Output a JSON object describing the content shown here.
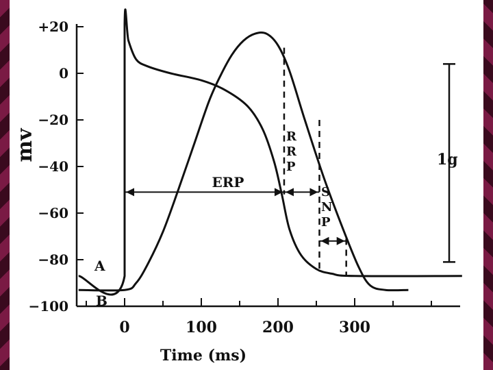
{
  "chart_data": {
    "type": "line",
    "title": "",
    "xlabel": "Time (ms)",
    "ylabel": "mv",
    "xlim": [
      -60,
      440
    ],
    "ylim": [
      -100,
      20
    ],
    "x_ticks": [
      0,
      100,
      200,
      300
    ],
    "y_ticks": [
      20,
      0,
      -20,
      -40,
      -60,
      -80,
      -100
    ],
    "y_tick_labels": [
      "+20",
      "0",
      "−20",
      "−40",
      "−60",
      "−80",
      "−100"
    ],
    "series": [
      {
        "name": "A",
        "points": [
          [
            -60,
            -87
          ],
          [
            0,
            -87
          ],
          [
            0,
            21
          ],
          [
            5,
            14
          ],
          [
            15,
            6
          ],
          [
            30,
            3
          ],
          [
            60,
            0
          ],
          [
            100,
            -3
          ],
          [
            130,
            -7
          ],
          [
            160,
            -14
          ],
          [
            180,
            -24
          ],
          [
            195,
            -38
          ],
          [
            205,
            -52
          ],
          [
            215,
            -67
          ],
          [
            230,
            -78
          ],
          [
            250,
            -84
          ],
          [
            270,
            -86
          ],
          [
            300,
            -87
          ],
          [
            440,
            -87
          ]
        ]
      },
      {
        "name": "B",
        "points": [
          [
            -60,
            -93
          ],
          [
            0,
            -93
          ],
          [
            15,
            -90
          ],
          [
            30,
            -82
          ],
          [
            50,
            -68
          ],
          [
            70,
            -50
          ],
          [
            90,
            -31
          ],
          [
            110,
            -12
          ],
          [
            125,
            -1
          ],
          [
            140,
            8
          ],
          [
            155,
            14
          ],
          [
            170,
            17
          ],
          [
            185,
            17
          ],
          [
            200,
            12
          ],
          [
            215,
            1
          ],
          [
            235,
            -20
          ],
          [
            260,
            -45
          ],
          [
            285,
            -67
          ],
          [
            305,
            -83
          ],
          [
            320,
            -91
          ],
          [
            340,
            -93
          ],
          [
            370,
            -93
          ]
        ]
      }
    ],
    "markers": {
      "rrp_line_x": 208,
      "snp_start_x": 254,
      "snp_end_x": 289,
      "erp_arrow": {
        "x_start": 0,
        "x_end": 208,
        "y": -51
      },
      "rrp_arrow": {
        "x_start": 208,
        "x_end": 254,
        "y": -51
      },
      "snp_arrow": {
        "x_start": 254,
        "x_end": 289,
        "y": -72
      },
      "scale_bar": {
        "y_top": 4,
        "y_bottom": -81
      }
    },
    "annotations": {
      "erp": "ERP",
      "rrp": [
        "R",
        "R",
        "P"
      ],
      "snp": [
        "S",
        "N",
        "P"
      ],
      "series_a": "A",
      "series_b": "B",
      "scale": "1g"
    },
    "grid": false,
    "legend": "none"
  }
}
